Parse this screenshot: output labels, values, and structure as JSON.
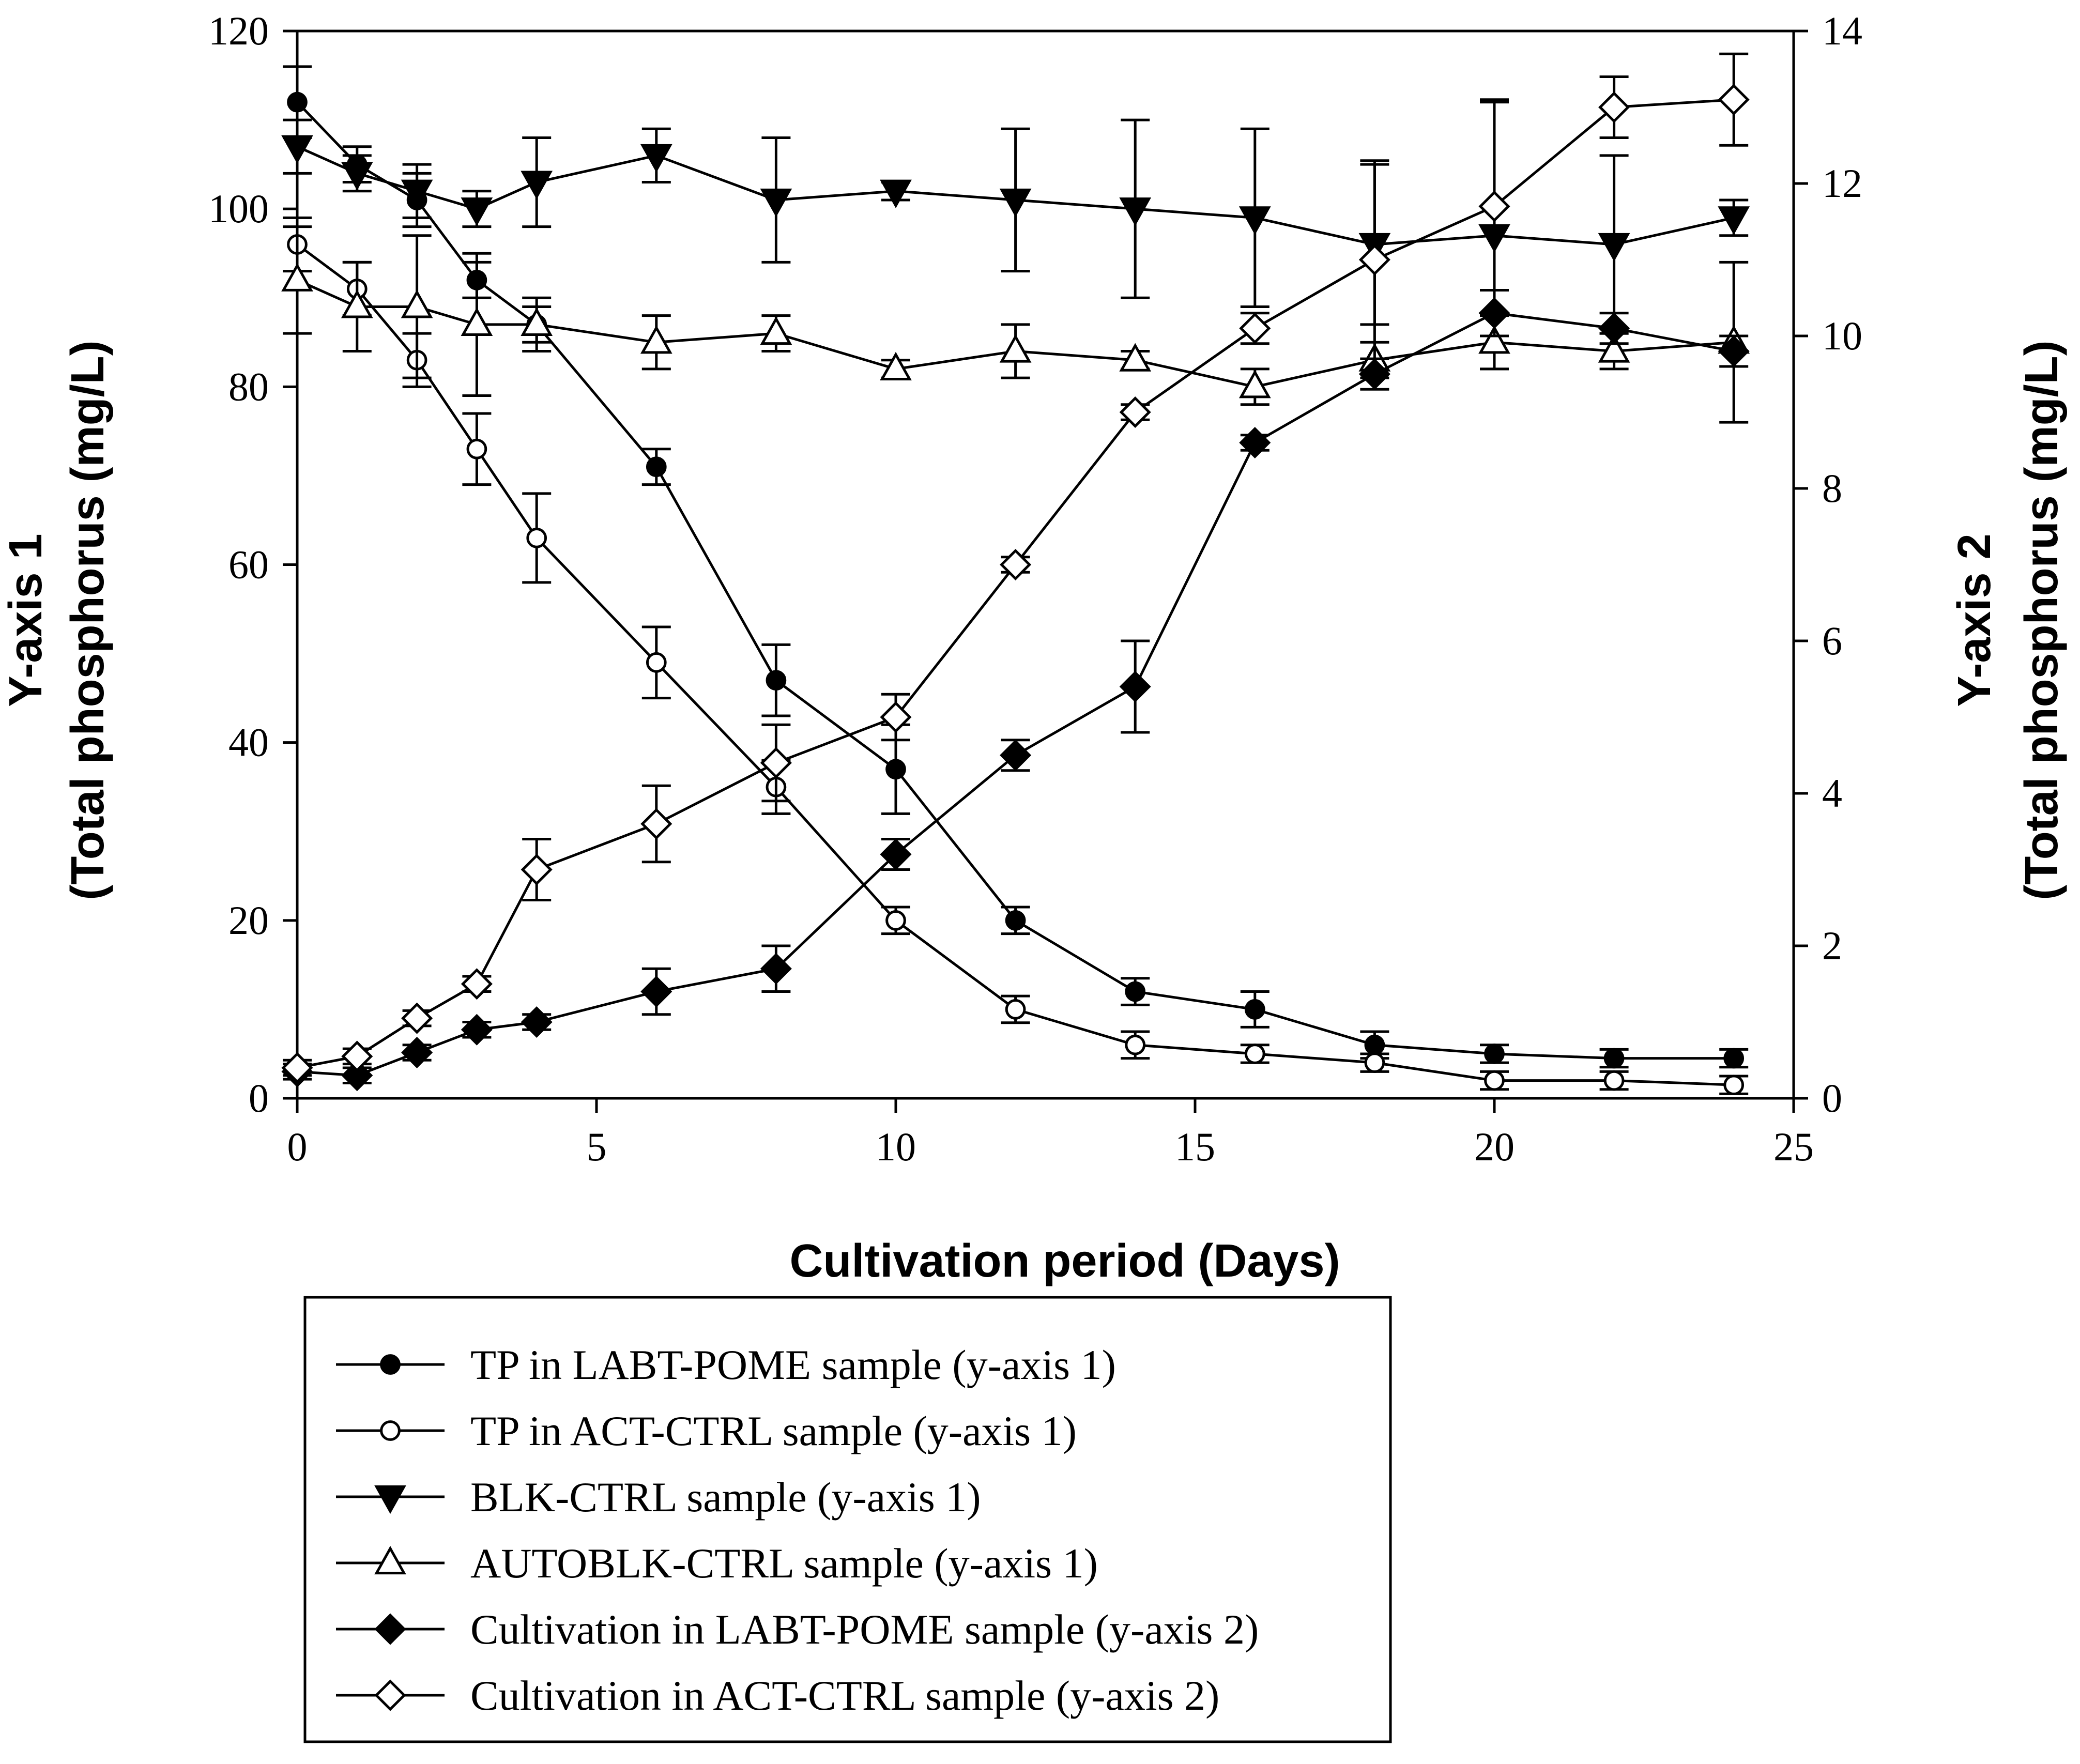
{
  "chart_data": {
    "type": "line",
    "title": "",
    "xlabel": "Cultivation period (Days)",
    "ylabel": [
      "Y-axis 1",
      "(Total phosphorus (mg/L)"
    ],
    "y2label": [
      "Y-axis 2",
      "(Total phosphorus (mg/L)"
    ],
    "xlim": [
      0,
      25
    ],
    "ylim": [
      0,
      120
    ],
    "y2lim": [
      0,
      14
    ],
    "x_ticks": [
      0,
      5,
      10,
      15,
      20,
      25
    ],
    "y_ticks": [
      0,
      20,
      40,
      60,
      80,
      100,
      120
    ],
    "y2_ticks": [
      0,
      2,
      4,
      6,
      8,
      10,
      12,
      14
    ],
    "grid": false,
    "legend_position": "bottom",
    "series": [
      {
        "name": "TP in LABT-POME sample (y-axis 1)",
        "legend_parts": [
          "TP in",
          "LABT-POME sample (y-axis 1)"
        ],
        "axis": "y1",
        "marker": "circle",
        "filled": true,
        "x": [
          0,
          1,
          2,
          3,
          4,
          6,
          8,
          10,
          12,
          14,
          16,
          18,
          20,
          22,
          24
        ],
        "y": [
          112,
          105,
          101,
          92,
          87,
          71,
          47,
          37,
          20,
          12,
          10,
          6,
          5,
          4.5,
          4.5
        ],
        "err": [
          4,
          2,
          3,
          2,
          2,
          2,
          4,
          5,
          1.5,
          1.5,
          2,
          1.5,
          1,
          1,
          1
        ]
      },
      {
        "name": "TP in ACT-CTRL sample (y-axis 1)",
        "legend_parts": [
          "TP in",
          "ACT-CTRL sample (y-axis 1)"
        ],
        "axis": "y1",
        "marker": "circle",
        "filled": false,
        "x": [
          0,
          1,
          2,
          3,
          4,
          6,
          8,
          10,
          12,
          14,
          16,
          18,
          20,
          22,
          24
        ],
        "y": [
          96,
          91,
          83,
          73,
          63,
          49,
          35,
          20,
          10,
          6,
          5,
          4,
          2,
          2,
          1.5
        ],
        "err": [
          3,
          3,
          3,
          4,
          5,
          4,
          3,
          1.5,
          1.5,
          1.5,
          1,
          1,
          1,
          1,
          1
        ]
      },
      {
        "name": "BLK-CTRL sample (y-axis 1)",
        "legend_parts": [
          "BLK-CTRL sample (y-axis 1)"
        ],
        "axis": "y1",
        "marker": "triangle-down",
        "filled": true,
        "x": [
          0,
          1,
          2,
          3,
          4,
          6,
          8,
          10,
          12,
          14,
          16,
          18,
          20,
          22,
          24
        ],
        "y": [
          107,
          104,
          102,
          100,
          103,
          106,
          101,
          102,
          101,
          100,
          99,
          96,
          97,
          96,
          99
        ],
        "err": [
          3,
          2,
          3,
          2,
          5,
          3,
          7,
          1,
          8,
          10,
          10,
          9,
          15,
          10,
          2
        ]
      },
      {
        "name": "AUTOBLK-CTRL sample (y-axis 1)",
        "legend_parts": [
          "AUTOBLK-CTRL",
          "sample (y-axis 1)"
        ],
        "axis": "y1",
        "marker": "triangle-up",
        "filled": false,
        "x": [
          0,
          1,
          2,
          3,
          4,
          6,
          8,
          10,
          12,
          14,
          16,
          18,
          20,
          22,
          24
        ],
        "y": [
          92,
          89,
          89,
          87,
          87,
          85,
          86,
          82,
          84,
          83,
          80,
          83,
          85,
          84,
          85
        ],
        "err": [
          6,
          5,
          8,
          8,
          3,
          3,
          2,
          1,
          3,
          1,
          2,
          2,
          3,
          2,
          9
        ]
      },
      {
        "name": "Cultivation in LABT-POME sample (y-axis 2)",
        "legend_parts": [
          "Cultivation",
          "in",
          "LABT-POME sample (y-axis 2)"
        ],
        "axis": "y2",
        "marker": "diamond",
        "filled": true,
        "x": [
          0,
          1,
          2,
          3,
          4,
          6,
          8,
          10,
          12,
          14,
          16,
          18,
          20,
          22,
          24
        ],
        "y": [
          0.35,
          0.3,
          0.6,
          0.9,
          1.0,
          1.4,
          1.7,
          3.2,
          4.5,
          5.4,
          8.6,
          9.5,
          10.3,
          10.1,
          9.8
        ],
        "err": [
          0.1,
          0.1,
          0.1,
          0.1,
          0.1,
          0.3,
          0.3,
          0.2,
          0.2,
          0.6,
          0.1,
          0.2,
          0.3,
          0.2,
          0.2
        ]
      },
      {
        "name": "Cultivation in ACT-CTRL sample (y-axis 2)",
        "legend_parts": [
          "Cultivation",
          "in",
          "ACT-CTRL sample (y-axis 2)"
        ],
        "axis": "y2",
        "marker": "diamond",
        "filled": false,
        "x": [
          0,
          1,
          2,
          3,
          4,
          6,
          8,
          10,
          12,
          14,
          16,
          18,
          20,
          22,
          24
        ],
        "y": [
          0.4,
          0.55,
          1.05,
          1.5,
          3.0,
          3.6,
          4.4,
          5.0,
          7.0,
          9.0,
          10.1,
          11.0,
          11.7,
          13.0,
          13.1
        ],
        "err": [
          0.1,
          0.1,
          0.1,
          0.1,
          0.4,
          0.5,
          0.5,
          0.3,
          0.1,
          0.1,
          0.2,
          1.3,
          1.4,
          0.4,
          0.6
        ]
      }
    ]
  }
}
